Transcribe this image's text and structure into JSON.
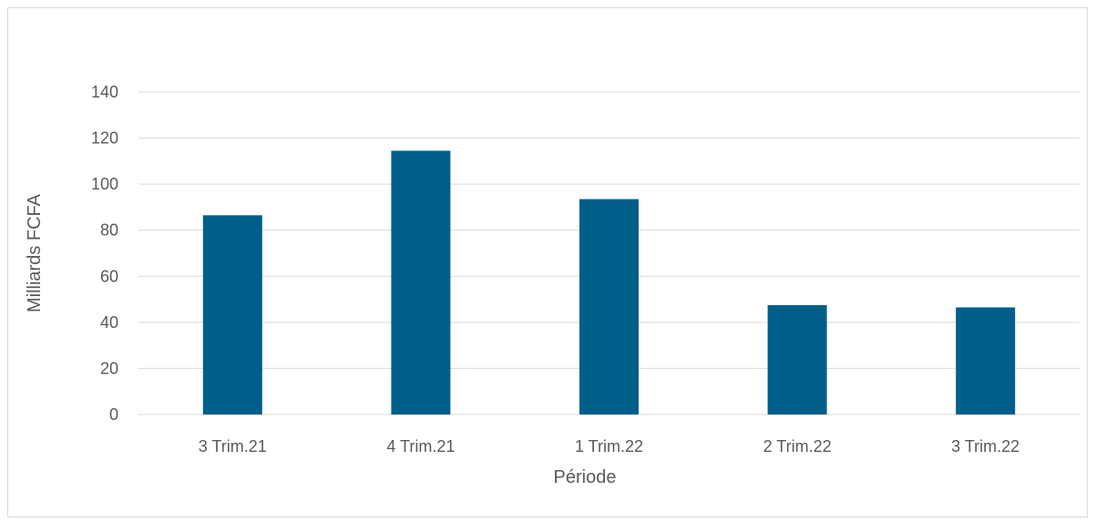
{
  "chart_data": {
    "type": "bar",
    "title": "",
    "xlabel": "Période",
    "ylabel": "Milliards FCFA",
    "categories": [
      "3 Trim.21",
      "4 Trim.21",
      "1 Trim.22",
      "2 Trim.22",
      "3 Trim.22"
    ],
    "values": [
      86.5,
      114.5,
      93.5,
      47.5,
      46.5
    ],
    "ylim": [
      0,
      140
    ],
    "yticks": [
      0,
      20,
      40,
      60,
      80,
      100,
      120,
      140
    ],
    "grid": true,
    "bar_color": "#005f8a",
    "gridline_color": "#d9d9d9"
  }
}
